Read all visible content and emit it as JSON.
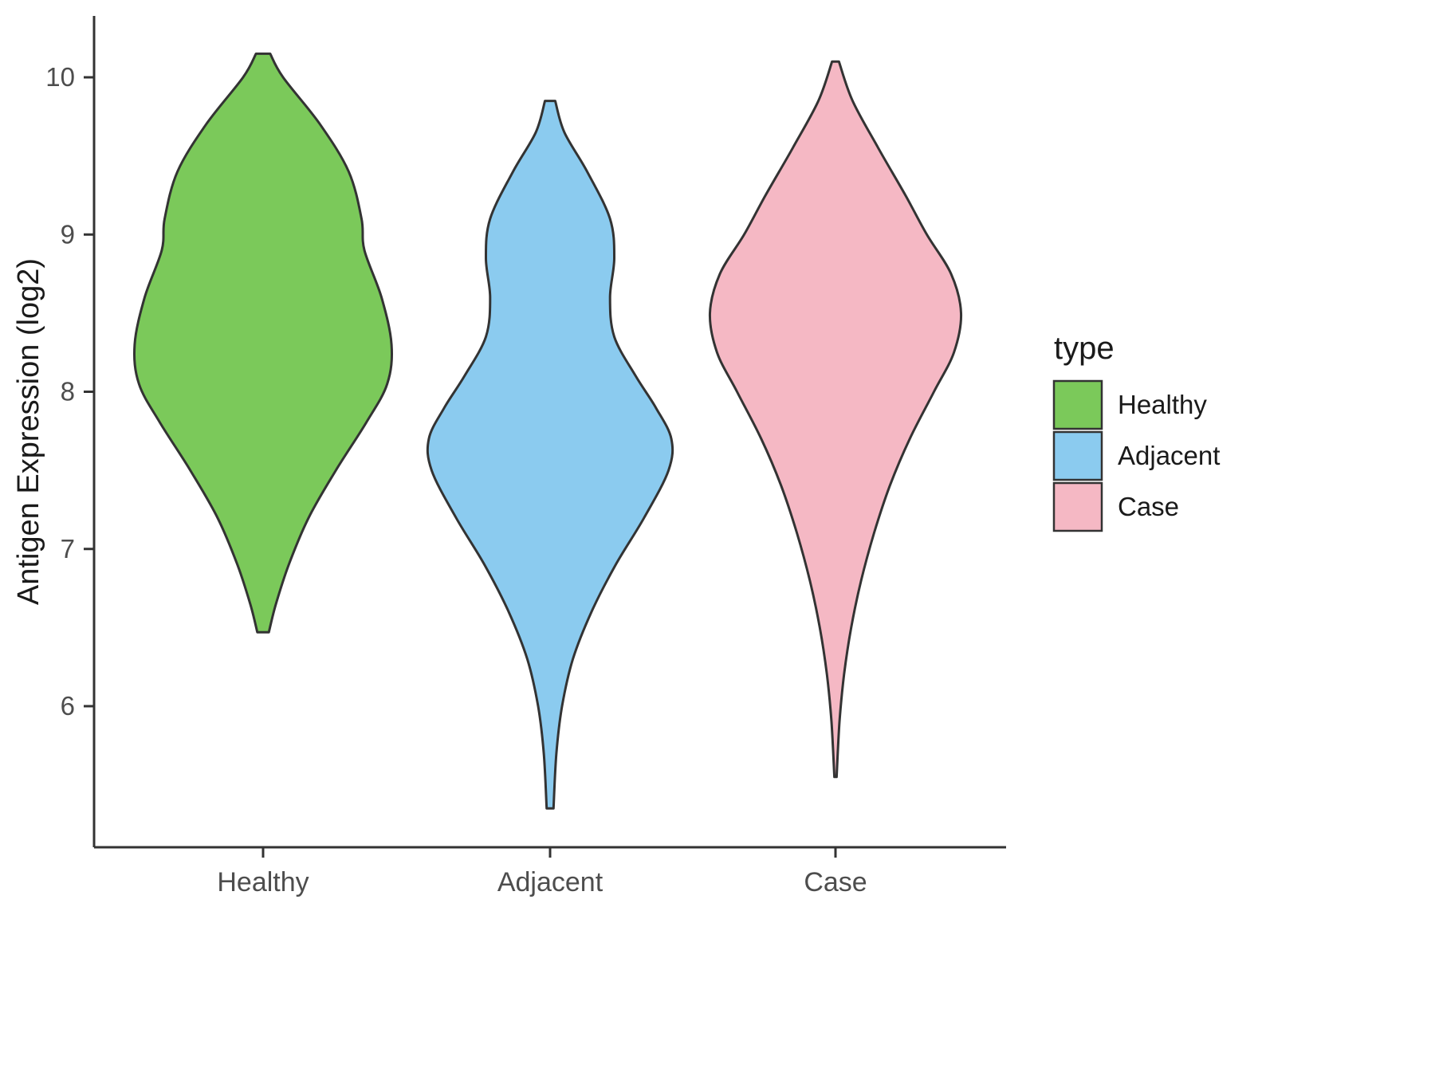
{
  "figure": {
    "background": "#FFFFFF",
    "axis_color": "#333333",
    "tick_label_color": "#4D4D4D",
    "title_color": "#1A1A1A"
  },
  "chart_data": {
    "type": "violin",
    "title": "",
    "xlabel": "",
    "ylabel": "Antigen Expression (log2)",
    "categories": [
      "Healthy",
      "Adjacent",
      "Case"
    ],
    "y_ticks": [
      6,
      7,
      8,
      9,
      10
    ],
    "y_range_visible": [
      5.1,
      10.4
    ],
    "grid": false,
    "outline_color": "#333333",
    "legend": {
      "title": "type",
      "position": "right",
      "entries": [
        {
          "label": "Healthy",
          "color": "#7BC95A"
        },
        {
          "label": "Adjacent",
          "color": "#8BCBEF"
        },
        {
          "label": "Case",
          "color": "#F5B8C4"
        }
      ]
    },
    "series": [
      {
        "name": "Healthy",
        "color": "#7BC95A",
        "y_min": 6.47,
        "y_max": 10.15,
        "profile": [
          [
            10.15,
            0.025
          ],
          [
            10.0,
            0.07
          ],
          [
            9.7,
            0.2
          ],
          [
            9.4,
            0.3
          ],
          [
            9.1,
            0.345
          ],
          [
            8.9,
            0.355
          ],
          [
            8.6,
            0.415
          ],
          [
            8.3,
            0.45
          ],
          [
            8.05,
            0.435
          ],
          [
            7.8,
            0.36
          ],
          [
            7.5,
            0.255
          ],
          [
            7.2,
            0.16
          ],
          [
            6.9,
            0.09
          ],
          [
            6.65,
            0.045
          ],
          [
            6.47,
            0.02
          ]
        ]
      },
      {
        "name": "Adjacent",
        "color": "#8BCBEF",
        "y_min": 5.35,
        "y_max": 9.85,
        "profile": [
          [
            9.85,
            0.018
          ],
          [
            9.65,
            0.05
          ],
          [
            9.4,
            0.13
          ],
          [
            9.1,
            0.21
          ],
          [
            8.85,
            0.225
          ],
          [
            8.6,
            0.21
          ],
          [
            8.35,
            0.225
          ],
          [
            8.1,
            0.3
          ],
          [
            7.9,
            0.37
          ],
          [
            7.7,
            0.425
          ],
          [
            7.5,
            0.415
          ],
          [
            7.2,
            0.33
          ],
          [
            6.9,
            0.23
          ],
          [
            6.6,
            0.145
          ],
          [
            6.3,
            0.08
          ],
          [
            6.0,
            0.042
          ],
          [
            5.7,
            0.022
          ],
          [
            5.35,
            0.012
          ]
        ]
      },
      {
        "name": "Case",
        "color": "#F5B8C4",
        "y_min": 5.55,
        "y_max": 10.1,
        "profile": [
          [
            10.1,
            0.012
          ],
          [
            9.85,
            0.06
          ],
          [
            9.55,
            0.15
          ],
          [
            9.25,
            0.245
          ],
          [
            9.0,
            0.32
          ],
          [
            8.75,
            0.405
          ],
          [
            8.5,
            0.44
          ],
          [
            8.25,
            0.415
          ],
          [
            8.0,
            0.345
          ],
          [
            7.7,
            0.26
          ],
          [
            7.4,
            0.19
          ],
          [
            7.1,
            0.135
          ],
          [
            6.8,
            0.09
          ],
          [
            6.5,
            0.055
          ],
          [
            6.2,
            0.03
          ],
          [
            5.9,
            0.014
          ],
          [
            5.55,
            0.004
          ]
        ]
      }
    ]
  }
}
